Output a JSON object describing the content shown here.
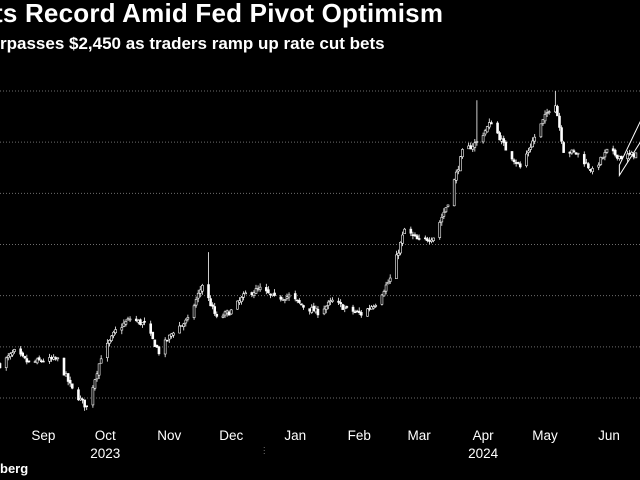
{
  "title": "ts Record Amid Fed Pivot Optimism",
  "subtitle": "rpasses $2,450 as traders ramp up rate cut bets",
  "source": "berg",
  "colors": {
    "background": "#000000",
    "candle": "#ffffff",
    "grid": "#6e6e6e",
    "text": "#ffffff"
  },
  "chart_data": {
    "type": "candlestick",
    "title": "ts Record Amid Fed Pivot Optimism",
    "subtitle": "rpasses $2,450 as traders ramp up rate cut bets",
    "xlabel": "",
    "ylabel": "",
    "x_range": [
      "2023-08-25",
      "2024-06-30"
    ],
    "ylim": [
      1800,
      2520
    ],
    "grid": true,
    "grid_lines_y": [
      1850,
      1950,
      2050,
      2150,
      2250,
      2350,
      2450
    ],
    "month_labels": [
      {
        "label": "Sep",
        "date": "2023-09-15"
      },
      {
        "label": "Oct",
        "date": "2023-10-15"
      },
      {
        "label": "Nov",
        "date": "2023-11-15"
      },
      {
        "label": "Dec",
        "date": "2023-12-15"
      },
      {
        "label": "Jan",
        "date": "2024-01-15"
      },
      {
        "label": "Feb",
        "date": "2024-02-15"
      },
      {
        "label": "Mar",
        "date": "2024-03-15"
      },
      {
        "label": "Apr",
        "date": "2024-04-15"
      },
      {
        "label": "May",
        "date": "2024-05-15"
      },
      {
        "label": "Jun",
        "date": "2024-06-15"
      }
    ],
    "year_labels": [
      {
        "label": "2023",
        "date": "2023-10-15"
      },
      {
        "label": "2024",
        "date": "2024-04-15"
      }
    ],
    "close_anchors": [
      [
        "2023-08-25",
        1915
      ],
      [
        "2023-09-01",
        1940
      ],
      [
        "2023-09-08",
        1918
      ],
      [
        "2023-09-15",
        1924
      ],
      [
        "2023-09-22",
        1925
      ],
      [
        "2023-09-29",
        1866
      ],
      [
        "2023-10-06",
        1832
      ],
      [
        "2023-10-13",
        1931
      ],
      [
        "2023-10-20",
        1981
      ],
      [
        "2023-10-27",
        2005
      ],
      [
        "2023-11-03",
        1994
      ],
      [
        "2023-11-10",
        1940
      ],
      [
        "2023-11-17",
        1981
      ],
      [
        "2023-11-24",
        2002
      ],
      [
        "2023-12-01",
        2072
      ],
      [
        "2023-12-08",
        2005
      ],
      [
        "2023-12-15",
        2020
      ],
      [
        "2023-12-22",
        2053
      ],
      [
        "2023-12-29",
        2063
      ],
      [
        "2024-01-05",
        2045
      ],
      [
        "2024-01-12",
        2049
      ],
      [
        "2024-01-19",
        2029
      ],
      [
        "2024-01-26",
        2018
      ],
      [
        "2024-02-02",
        2039
      ],
      [
        "2024-02-09",
        2024
      ],
      [
        "2024-02-16",
        2014
      ],
      [
        "2024-02-23",
        2036
      ],
      [
        "2024-03-01",
        2083
      ],
      [
        "2024-03-08",
        2179
      ],
      [
        "2024-03-15",
        2156
      ],
      [
        "2024-03-22",
        2165
      ],
      [
        "2024-03-29",
        2233
      ],
      [
        "2024-04-05",
        2330
      ],
      [
        "2024-04-12",
        2350
      ],
      [
        "2024-04-19",
        2390
      ],
      [
        "2024-04-26",
        2337
      ],
      [
        "2024-05-03",
        2301
      ],
      [
        "2024-05-10",
        2360
      ],
      [
        "2024-05-17",
        2415
      ],
      [
        "2024-05-20",
        2426
      ],
      [
        "2024-05-24",
        2334
      ],
      [
        "2024-05-31",
        2327
      ],
      [
        "2024-06-07",
        2293
      ],
      [
        "2024-06-14",
        2332
      ],
      [
        "2024-06-21",
        2321
      ],
      [
        "2024-06-28",
        2327
      ]
    ],
    "highlighted_range": [
      "2024-06-20",
      "2024-06-30"
    ]
  }
}
